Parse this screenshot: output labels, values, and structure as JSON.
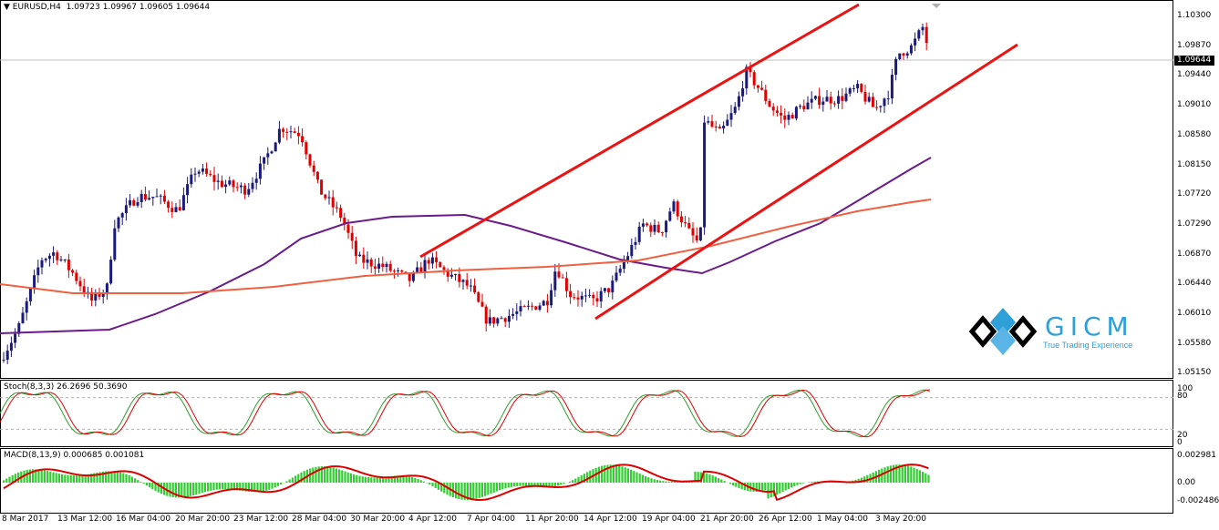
{
  "main": {
    "symbol": "EURUSD,H4",
    "ohlc": "1.09723 1.09967 1.09605 1.09644",
    "last_price": "1.09644",
    "price_ticks": [
      "1.10300",
      "1.09870",
      "1.09440",
      "1.09010",
      "1.08580",
      "1.08150",
      "1.07720",
      "1.07290",
      "1.06870",
      "1.06440",
      "1.06010",
      "1.05580",
      "1.05150"
    ]
  },
  "stoch": {
    "label": "Stoch(8,3,3) 26.2696 50.3690",
    "ticks": [
      "100",
      "80",
      "20",
      "0"
    ]
  },
  "macd": {
    "label": "MACD(8,13,9) 0.000685 0.001081",
    "ticks": [
      "0.002981",
      "0.00",
      "-0.002486"
    ]
  },
  "time_ticks": [
    "8 Mar 2017",
    "13 Mar 12:00",
    "16 Mar 04:00",
    "20 Mar 20:00",
    "23 Mar 12:00",
    "28 Mar 04:00",
    "30 Mar 20:00",
    "4 Apr 12:00",
    "7 Apr 04:00",
    "11 Apr 20:00",
    "14 Apr 12:00",
    "19 Apr 04:00",
    "21 Apr 20:00",
    "26 Apr 12:00",
    "1 May 04:00",
    "3 May 20:00"
  ],
  "logo": {
    "name": "GICM",
    "tagline": "True Trading Experience"
  },
  "colors": {
    "bull": "#1a1a7a",
    "bear": "#e00000",
    "ma_purple": "#6a1a8a",
    "ma_orange": "#f06040",
    "channel": "#ee1111",
    "stoch_green": "#2aa02a",
    "stoch_red": "#dd0000",
    "macd_hist": "#33cc33",
    "macd_signal": "#dd0000",
    "logo_blue": "#2f9fd8"
  }
}
